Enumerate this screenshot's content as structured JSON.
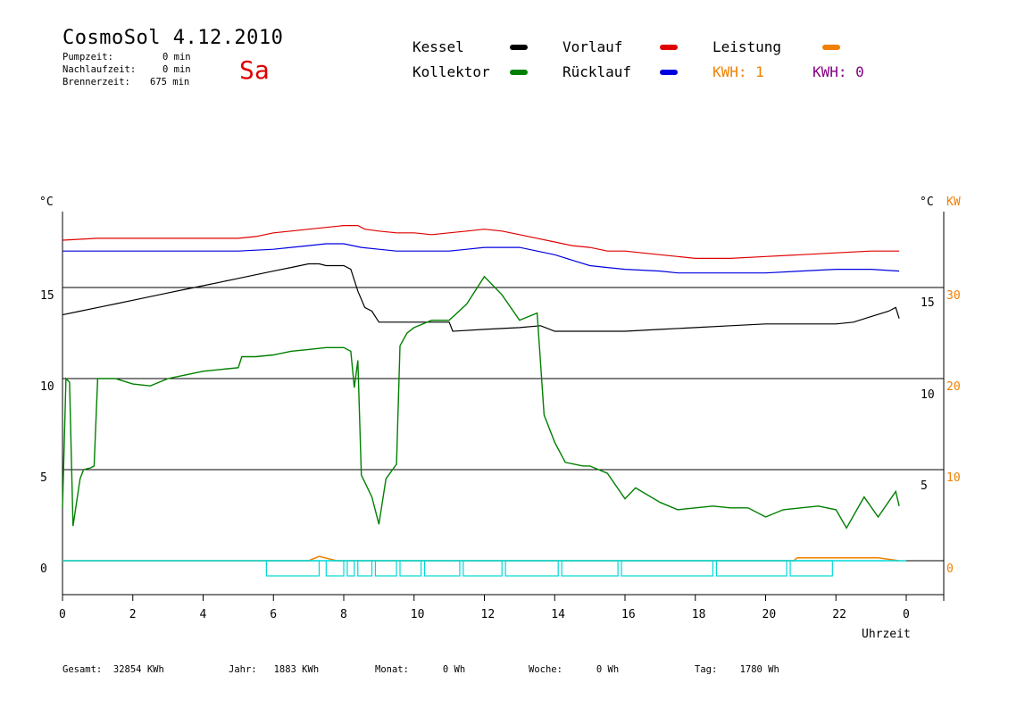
{
  "header": {
    "title": "CosmoSol 4.12.2010",
    "day": "Sa",
    "stats": [
      {
        "label": "Pumpzeit:",
        "value": "0 min"
      },
      {
        "label": "Nachlaufzeit:",
        "value": "0 min"
      },
      {
        "label": "Brennerzeit:",
        "value": "675 min"
      }
    ]
  },
  "legend": {
    "kessel": "Kessel",
    "kollektor": "Kollektor",
    "vorlauf": "Vorlauf",
    "ruecklauf": "Rücklauf",
    "leistung": "Leistung",
    "kwh1": "KWH: 1",
    "kwh0": "KWH: 0"
  },
  "colors": {
    "kessel": "#000000",
    "kollektor": "#008000",
    "vorlauf": "#e00000",
    "ruecklauf": "#0000e0",
    "leistung": "#f08000",
    "kwh0": "#800080",
    "pump": "#00d8d8"
  },
  "footer": {
    "gesamt": "Gesamt:  32854 KWh",
    "jahr": "Jahr:   1883 KWh",
    "monat": "Monat:      0 Wh",
    "woche": "Woche:      0 Wh",
    "tag": "Tag:    1780 Wh"
  },
  "chart_data": {
    "type": "line",
    "xlabel": "Uhrzeit",
    "ylabel_left": "°C",
    "ylabel_right": "°C",
    "ylabel_right2": "KW",
    "xlim": [
      0,
      24
    ],
    "x_tick_labels": [
      "0",
      "2",
      "4",
      "6",
      "8",
      "10",
      "12",
      "14",
      "16",
      "18",
      "20",
      "22",
      "0"
    ],
    "left_y_ticks": [
      "0",
      "5",
      "10",
      "15"
    ],
    "right_y_ticks": [
      "5",
      "10",
      "15"
    ],
    "right2_y_ticks": [
      "0",
      "10",
      "20",
      "30"
    ],
    "grid_lines_y": [
      0,
      5,
      10,
      15
    ],
    "series": [
      {
        "name": "Vorlauf",
        "color": "#e00000",
        "x": [
          0,
          1,
          2,
          3,
          4,
          5,
          5.5,
          6,
          6.5,
          7,
          7.5,
          8,
          8.4,
          8.6,
          9,
          9.5,
          10,
          10.5,
          11,
          11.5,
          12,
          12.5,
          13,
          13.5,
          14,
          14.5,
          15,
          15.5,
          16,
          17,
          17.5,
          18,
          19,
          20,
          21,
          22,
          23,
          23.8
        ],
        "y": [
          17.6,
          17.7,
          17.7,
          17.7,
          17.7,
          17.7,
          17.8,
          18.0,
          18.1,
          18.2,
          18.3,
          18.4,
          18.4,
          18.2,
          18.1,
          18.0,
          18.0,
          17.9,
          18.0,
          18.1,
          18.2,
          18.1,
          17.9,
          17.7,
          17.5,
          17.3,
          17.2,
          17.0,
          17.0,
          16.8,
          16.7,
          16.6,
          16.6,
          16.7,
          16.8,
          16.9,
          17.0,
          17.0
        ]
      },
      {
        "name": "Rücklauf",
        "color": "#0000e0",
        "x": [
          0,
          1,
          2,
          3,
          4,
          5,
          6,
          6.5,
          7,
          7.5,
          8,
          8.5,
          9,
          9.5,
          10,
          10.5,
          11,
          11.5,
          12,
          12.5,
          13,
          13.5,
          14,
          14.5,
          15,
          15.5,
          16,
          17,
          17.5,
          18,
          19,
          20,
          21,
          22,
          23,
          23.8
        ],
        "y": [
          17.0,
          17.0,
          17.0,
          17.0,
          17.0,
          17.0,
          17.1,
          17.2,
          17.3,
          17.4,
          17.4,
          17.2,
          17.1,
          17.0,
          17.0,
          17.0,
          17.0,
          17.1,
          17.2,
          17.2,
          17.2,
          17.0,
          16.8,
          16.5,
          16.2,
          16.1,
          16.0,
          15.9,
          15.8,
          15.8,
          15.8,
          15.8,
          15.9,
          16.0,
          16.0,
          15.9
        ]
      },
      {
        "name": "Kessel",
        "color": "#000000",
        "x": [
          0,
          0.5,
          1,
          1.5,
          2,
          2.5,
          3,
          3.5,
          4,
          4.5,
          5,
          5.5,
          6,
          6.5,
          7,
          7.3,
          7.5,
          8,
          8.2,
          8.4,
          8.6,
          8.8,
          9,
          10,
          11,
          11.1,
          12,
          13,
          13.6,
          14,
          15,
          16,
          17,
          18,
          19,
          20,
          21,
          22,
          22.5,
          23,
          23.5,
          23.7,
          23.8
        ],
        "y": [
          13.5,
          13.7,
          13.9,
          14.1,
          14.3,
          14.5,
          14.7,
          14.9,
          15.1,
          15.3,
          15.5,
          15.7,
          15.9,
          16.1,
          16.3,
          16.3,
          16.2,
          16.2,
          16.0,
          14.8,
          13.9,
          13.7,
          13.1,
          13.1,
          13.1,
          12.6,
          12.7,
          12.8,
          12.9,
          12.6,
          12.6,
          12.6,
          12.7,
          12.8,
          12.9,
          13.0,
          13.0,
          13.0,
          13.1,
          13.4,
          13.7,
          13.9,
          13.3
        ]
      },
      {
        "name": "Kollektor",
        "color": "#008000",
        "x": [
          0,
          0.1,
          0.2,
          0.3,
          0.5,
          0.6,
          0.8,
          0.9,
          1,
          1.5,
          2,
          2.5,
          3,
          3.5,
          4,
          4.5,
          5,
          5.1,
          5.5,
          6,
          6.5,
          7,
          7.5,
          8,
          8.2,
          8.3,
          8.4,
          8.5,
          8.8,
          9,
          9.2,
          9.5,
          9.6,
          9.8,
          10,
          10.5,
          11,
          11.5,
          12,
          12.5,
          13,
          13.5,
          13.7,
          14,
          14.3,
          14.8,
          15,
          15.5,
          16,
          16.3,
          17,
          17.5,
          18,
          18.5,
          19,
          19.5,
          20,
          20.5,
          21,
          21.5,
          22,
          22.3,
          22.8,
          23.2,
          23.7,
          23.8
        ],
        "y": [
          2.9,
          10.0,
          9.8,
          1.9,
          4.5,
          5.0,
          5.1,
          5.2,
          10.0,
          10.0,
          9.7,
          9.6,
          10.0,
          10.2,
          10.4,
          10.5,
          10.6,
          11.2,
          11.2,
          11.3,
          11.5,
          11.6,
          11.7,
          11.7,
          11.5,
          9.5,
          11.0,
          4.7,
          3.5,
          2.0,
          4.5,
          5.3,
          11.8,
          12.5,
          12.8,
          13.2,
          13.2,
          14.1,
          15.6,
          14.6,
          13.2,
          13.6,
          8.0,
          6.5,
          5.4,
          5.2,
          5.2,
          4.8,
          3.4,
          4.0,
          3.2,
          2.8,
          2.9,
          3.0,
          2.9,
          2.9,
          2.4,
          2.8,
          2.9,
          3.0,
          2.8,
          1.8,
          3.5,
          2.4,
          3.8,
          3.0
        ]
      }
    ],
    "leistung_kw": {
      "x": [
        0,
        7,
        7.3,
        7.8,
        20.8,
        20.9,
        23.2,
        23.8
      ],
      "y": [
        0,
        0,
        0.6,
        0,
        0,
        0.4,
        0.4,
        0
      ]
    },
    "pumpe_on_intervals": [
      [
        5.8,
        7.3
      ],
      [
        7.5,
        8.0
      ],
      [
        8.1,
        8.3
      ],
      [
        8.4,
        8.8
      ],
      [
        8.9,
        9.5
      ],
      [
        9.6,
        10.2
      ],
      [
        10.3,
        11.3
      ],
      [
        11.4,
        12.5
      ],
      [
        12.6,
        14.1
      ],
      [
        14.2,
        15.8
      ],
      [
        15.9,
        18.5
      ],
      [
        18.6,
        20.6
      ],
      [
        20.7,
        21.9
      ]
    ]
  }
}
